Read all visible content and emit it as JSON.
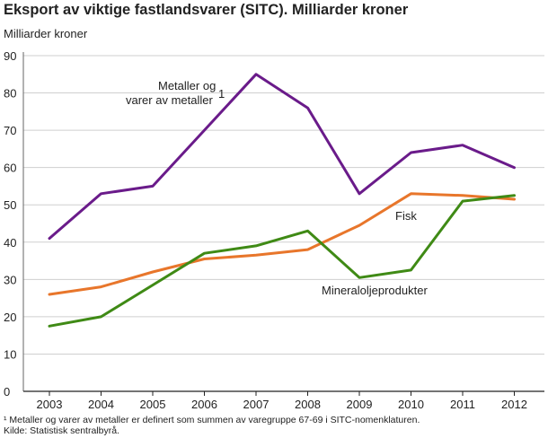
{
  "title": "Eksport av viktige fastlandsvarer (SITC). Milliarder kroner",
  "unit_label": "Milliarder kroner",
  "footnote": "¹ Metaller og varer av metaller er definert som summen av varegruppe 67-69 i SITC-nomenklaturen.",
  "source": "Kilde: Statistisk sentralbyrå.",
  "chart_data": {
    "type": "line",
    "title": "Eksport av viktige fastlandsvarer (SITC). Milliarder kroner",
    "ylabel": "Milliarder kroner",
    "xlabel": "",
    "x": [
      "2003",
      "2004",
      "2005",
      "2006",
      "2007",
      "2008",
      "2009",
      "2010",
      "2011",
      "2012"
    ],
    "ylim": [
      0,
      90
    ],
    "yticks": [
      0,
      10,
      20,
      30,
      40,
      50,
      60,
      70,
      80,
      90
    ],
    "grid": "horizontal",
    "series": [
      {
        "name": "Metaller og varer av metaller¹",
        "label_lines": [
          "Metaller og",
          "varer av metaller",
          "1"
        ],
        "color": "#6a1b8a",
        "values": [
          41,
          53,
          55,
          70,
          85,
          76,
          53,
          64,
          66,
          60
        ]
      },
      {
        "name": "Fisk",
        "label_lines": [
          "Fisk"
        ],
        "color": "#e8762b",
        "values": [
          26,
          28,
          32,
          35.5,
          36.5,
          38,
          44.5,
          53,
          52.5,
          51.5
        ]
      },
      {
        "name": "Mineraloljeprodukter",
        "label_lines": [
          "Mineraloljeprodukter"
        ],
        "color": "#3f8a15",
        "values": [
          17.5,
          20,
          28.5,
          37,
          39,
          43,
          30.5,
          32.5,
          51,
          52.5
        ]
      }
    ]
  }
}
